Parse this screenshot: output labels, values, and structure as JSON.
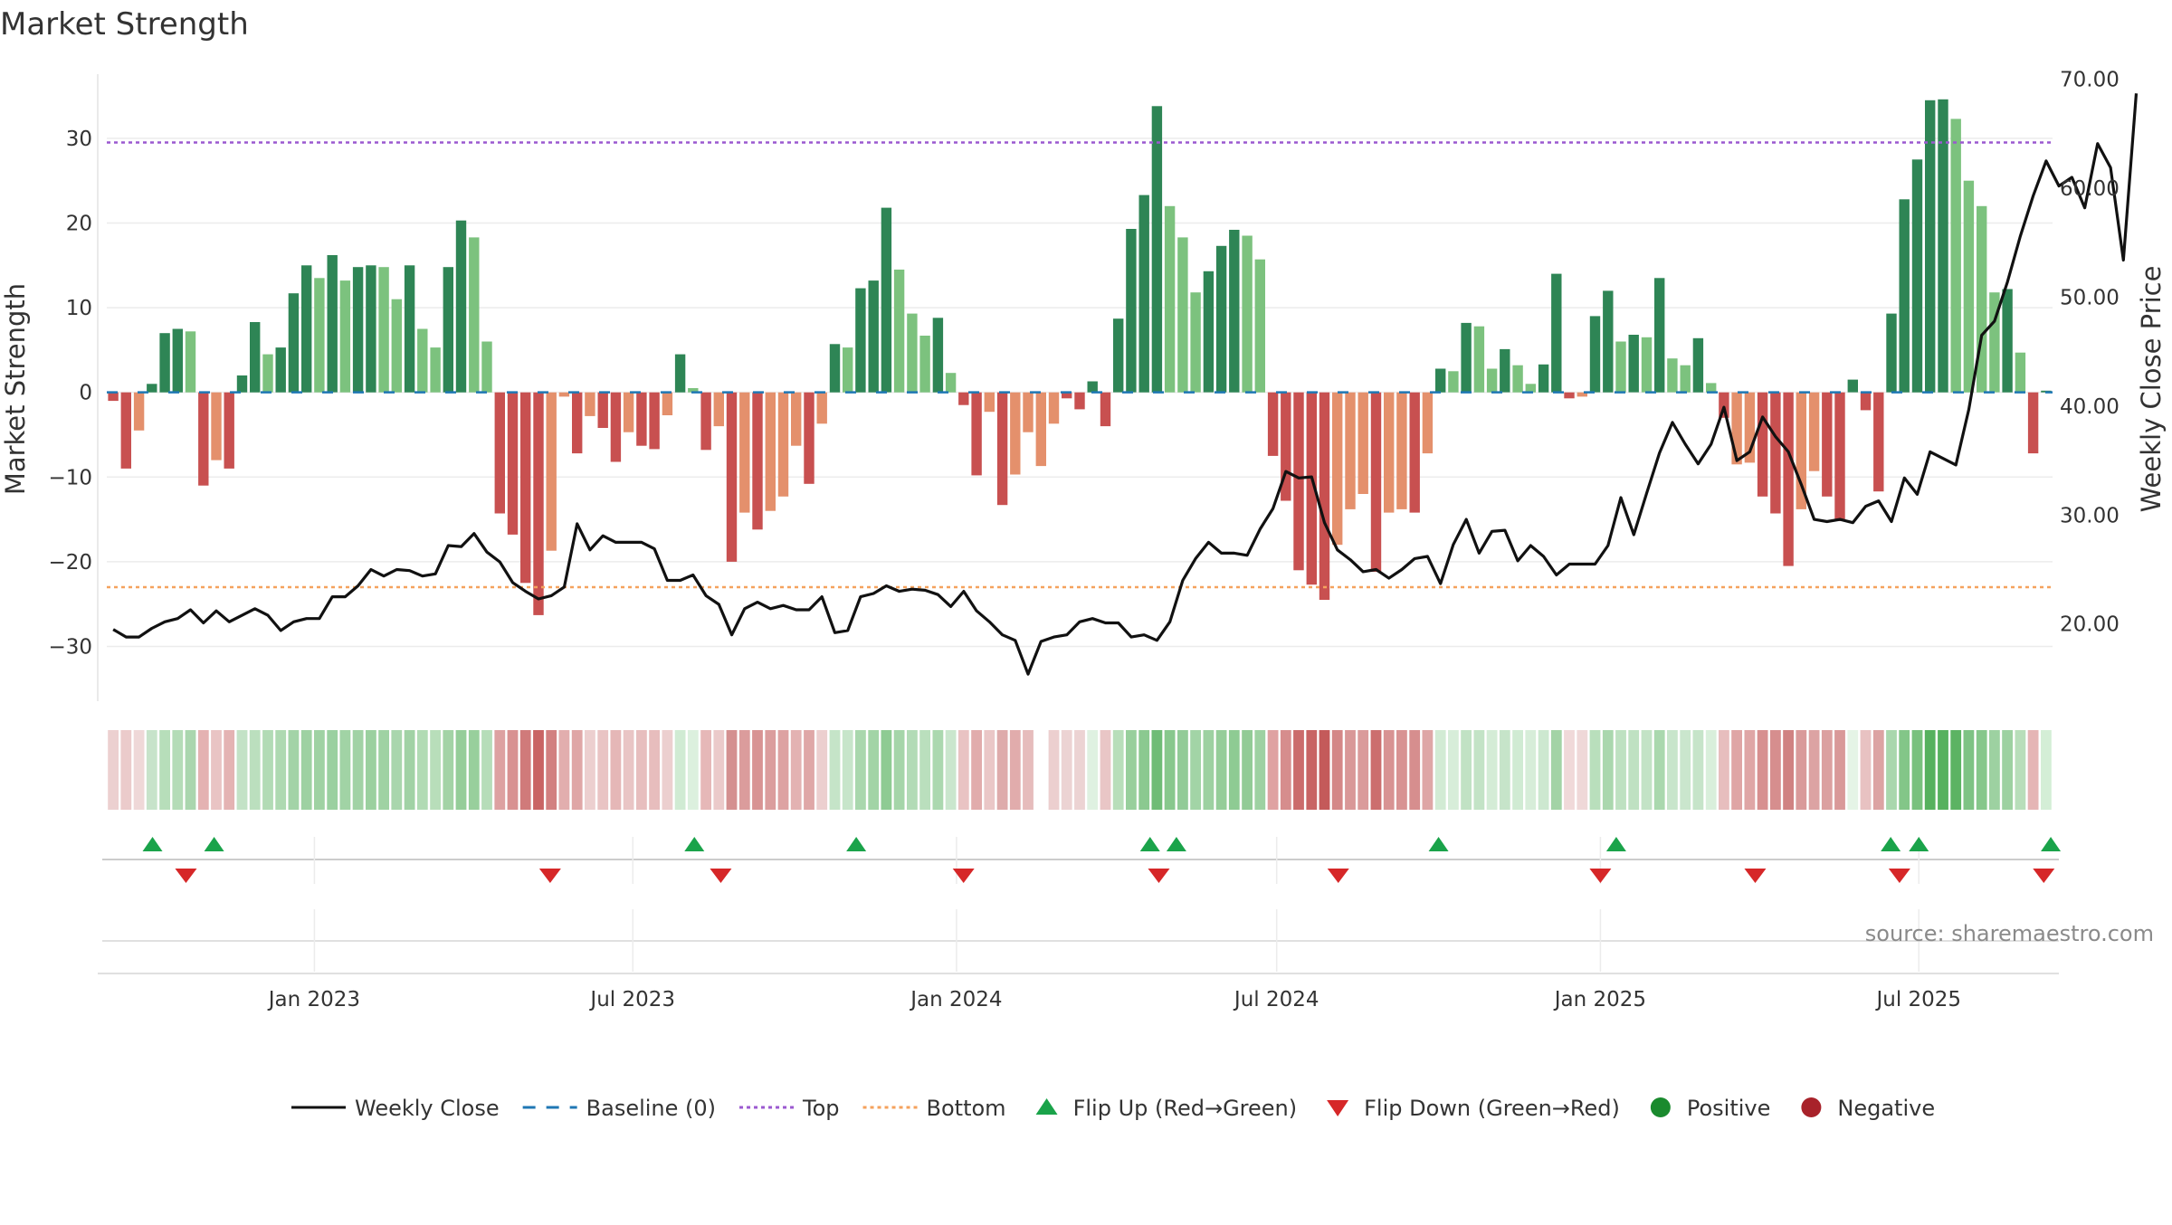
{
  "chart_data": {
    "type": "bar",
    "title": "Market Strength",
    "ylabel": "Market Strength",
    "y2label": "Weekly Close Price",
    "ylim": [
      -37,
      38
    ],
    "y2lim": [
      12.5,
      70.8
    ],
    "yticks": [
      -30,
      -20,
      -10,
      0,
      10,
      20,
      30
    ],
    "y2ticks": [
      20,
      30,
      40,
      50,
      60,
      70
    ],
    "y2tick_labels": [
      "20.00",
      "30.00",
      "40.00",
      "50.00",
      "60.00",
      "70.00"
    ],
    "x_start": "2022-09-05",
    "x_end": "2025-09-15",
    "x_tick_labels": [
      {
        "date": "2023-01-01",
        "label": "Jan 2023"
      },
      {
        "date": "2023-07-01",
        "label": "Jul 2023"
      },
      {
        "date": "2024-01-01",
        "label": "Jan 2024"
      },
      {
        "date": "2024-07-01",
        "label": "Jul 2024"
      },
      {
        "date": "2025-01-01",
        "label": "Jan 2025"
      },
      {
        "date": "2025-07-01",
        "label": "Jul 2025"
      }
    ],
    "top_line": 29.5,
    "bottom_line": -23,
    "grid": true,
    "legend_position": "bottom",
    "series": [
      {
        "name": "Market Strength",
        "values": [
          -1,
          -9,
          -4.5,
          1,
          7,
          7.5,
          7.2,
          -11,
          -8,
          -9,
          2,
          8.3,
          4.5,
          5.3,
          11.7,
          15,
          13.5,
          16.2,
          13.2,
          14.8,
          15,
          14.8,
          11,
          15,
          7.5,
          5.3,
          14.8,
          20.3,
          18.3,
          6,
          -14.3,
          -16.8,
          -22.5,
          -26.3,
          -18.7,
          -0.5,
          -7.2,
          -2.8,
          -4.2,
          -8.2,
          -4.7,
          -6.3,
          -6.7,
          -2.7,
          4.5,
          0.5,
          -6.8,
          -4,
          -20,
          -14.2,
          -16.2,
          -14,
          -12.3,
          -6.3,
          -10.8,
          -3.7,
          5.7,
          5.3,
          12.3,
          13.2,
          21.8,
          14.5,
          9.3,
          6.7,
          8.8,
          2.3,
          -1.5,
          -9.8,
          -2.3,
          -13.3,
          -9.7,
          -4.7,
          -8.7,
          -3.7,
          -0.7,
          -2,
          1.3,
          -4,
          8.7,
          19.3,
          23.3,
          33.8,
          22,
          18.3,
          11.8,
          14.3,
          17.3,
          19.2,
          18.5,
          15.7,
          -7.5,
          -12.8,
          -21,
          -22.7,
          -24.5,
          -18,
          -13.8,
          -12,
          -21.2,
          -14.2,
          -13.8,
          -14.2,
          -7.2,
          2.8,
          2.5,
          8.2,
          7.8,
          2.8,
          5.1,
          3.2,
          1,
          3.3,
          14,
          -0.7,
          -0.5,
          9,
          12,
          6,
          6.8,
          6.5,
          13.5,
          4,
          3.2,
          6.4,
          1.1,
          -3,
          -8.5,
          -8.3,
          -12.3,
          -14.3,
          -20.5,
          -13.8,
          -9.3,
          -12.3,
          -15.2,
          1.5,
          -2.1,
          -11.7,
          9.3,
          22.8,
          27.5,
          34.5,
          34.6,
          32.3,
          25,
          22,
          11.8,
          12.2,
          4.7,
          -7.2,
          0.2
        ],
        "colors": [
          "#c85050",
          "#c85050",
          "#e4906c",
          "#2e8555",
          "#2e8555",
          "#2e8555",
          "#7cc27e",
          "#c85050",
          "#e4906c",
          "#c85050",
          "#2e8555",
          "#2e8555",
          "#7cc27e",
          "#2e8555",
          "#2e8555",
          "#2e8555",
          "#7cc27e",
          "#2e8555",
          "#7cc27e",
          "#2e8555",
          "#2e8555",
          "#7cc27e",
          "#7cc27e",
          "#2e8555",
          "#7cc27e",
          "#7cc27e",
          "#2e8555",
          "#2e8555",
          "#7cc27e",
          "#7cc27e",
          "#c85050",
          "#c85050",
          "#c85050",
          "#c85050",
          "#e4906c",
          "#e4906c",
          "#c85050",
          "#e4906c",
          "#c85050",
          "#c85050",
          "#e4906c",
          "#c85050",
          "#c85050",
          "#e4906c",
          "#2e8555",
          "#7cc27e",
          "#c85050",
          "#e4906c",
          "#c85050",
          "#e4906c",
          "#c85050",
          "#e4906c",
          "#e4906c",
          "#e4906c",
          "#c85050",
          "#e4906c",
          "#2e8555",
          "#7cc27e",
          "#2e8555",
          "#2e8555",
          "#2e8555",
          "#7cc27e",
          "#7cc27e",
          "#7cc27e",
          "#2e8555",
          "#7cc27e",
          "#c85050",
          "#c85050",
          "#e4906c",
          "#c85050",
          "#e4906c",
          "#e4906c",
          "#e4906c",
          "#e4906c",
          "#c85050",
          "#c85050",
          "#2e8555",
          "#c85050",
          "#2e8555",
          "#2e8555",
          "#2e8555",
          "#2e8555",
          "#7cc27e",
          "#7cc27e",
          "#7cc27e",
          "#2e8555",
          "#2e8555",
          "#2e8555",
          "#7cc27e",
          "#7cc27e",
          "#c85050",
          "#c85050",
          "#c85050",
          "#c85050",
          "#c85050",
          "#e4906c",
          "#e4906c",
          "#e4906c",
          "#c85050",
          "#e4906c",
          "#e4906c",
          "#c85050",
          "#e4906c",
          "#2e8555",
          "#7cc27e",
          "#2e8555",
          "#7cc27e",
          "#7cc27e",
          "#2e8555",
          "#7cc27e",
          "#7cc27e",
          "#2e8555",
          "#2e8555",
          "#c85050",
          "#e4906c",
          "#2e8555",
          "#2e8555",
          "#7cc27e",
          "#2e8555",
          "#7cc27e",
          "#2e8555",
          "#7cc27e",
          "#7cc27e",
          "#2e8555",
          "#7cc27e",
          "#c85050",
          "#e4906c",
          "#e4906c",
          "#c85050",
          "#c85050",
          "#c85050",
          "#e4906c",
          "#e4906c",
          "#c85050",
          "#c85050",
          "#2e8555",
          "#c85050",
          "#c85050",
          "#2e8555",
          "#2e8555",
          "#2e8555",
          "#2e8555",
          "#2e8555",
          "#7cc27e",
          "#7cc27e",
          "#7cc27e",
          "#7cc27e",
          "#2e8555",
          "#7cc27e",
          "#c85050",
          "#2e8555"
        ]
      },
      {
        "name": "Weekly Close",
        "values": [
          19.5,
          18.8,
          18.8,
          19.6,
          20.2,
          20.5,
          21.3,
          20.1,
          21.2,
          20.2,
          20.8,
          21.4,
          20.8,
          19.4,
          20.2,
          20.5,
          20.5,
          22.5,
          22.5,
          23.5,
          25,
          24.4,
          25,
          24.9,
          24.4,
          24.6,
          27.2,
          27.1,
          28.3,
          26.6,
          25.7,
          23.8,
          23,
          22.3,
          22.6,
          23.4,
          29.2,
          26.8,
          28.1,
          27.5,
          27.5,
          27.5,
          26.9,
          24,
          24,
          24.5,
          22.6,
          21.8,
          19,
          21.4,
          22,
          21.4,
          21.7,
          21.3,
          21.3,
          22.5,
          19.2,
          19.4,
          22.5,
          22.8,
          23.5,
          23,
          23.2,
          23.1,
          22.7,
          21.6,
          23,
          21.2,
          20.2,
          19,
          18.5,
          15.4,
          18.4,
          18.8,
          19,
          20.2,
          20.5,
          20.1,
          20.1,
          18.8,
          19,
          18.5,
          20.2,
          24,
          26,
          27.5,
          26.5,
          26.5,
          26.3,
          28.7,
          30.6,
          34,
          33.4,
          33.5,
          29.3,
          26.8,
          25.9,
          24.8,
          25,
          24.2,
          25,
          26,
          26.2,
          23.7,
          27.3,
          29.6,
          26.5,
          28.5,
          28.6,
          25.8,
          27.2,
          26.2,
          24.5,
          25.5,
          25.5,
          25.5,
          27.2,
          31.6,
          28.2,
          32,
          35.7,
          38.5,
          36.5,
          34.7,
          36.5,
          39.9,
          35,
          35.8,
          39,
          37.2,
          35.8,
          32.8,
          29.6,
          29.4,
          29.6,
          29.3,
          30.8,
          31.3,
          29.4,
          33.4,
          31.9,
          35.8,
          35.2,
          34.6,
          39.7,
          46.5,
          47.8,
          51.4,
          55.6,
          59.3,
          62.5,
          60.2,
          61,
          58.2,
          64.1,
          61.9,
          53.4,
          68.7
        ]
      }
    ],
    "heat_strip_colors": [
      "#ecd0d0",
      "#ebcbcb",
      "#efd8d8",
      "#c7e3ca",
      "#b7deba",
      "#b4dcb7",
      "#aad6ae",
      "#e4b2b2",
      "#e9c4c4",
      "#e4b3b3",
      "#c3e2c6",
      "#bbdfbe",
      "#b2dbb5",
      "#aed9b1",
      "#a3d3a7",
      "#9ed1a2",
      "#9fd2a3",
      "#9ad0a0",
      "#a1d3a5",
      "#a1d2a5",
      "#9bd09f",
      "#9fd2a3",
      "#a9d6ad",
      "#a1d2a5",
      "#b1dbb4",
      "#b8deba",
      "#a3d3a6",
      "#95cd99",
      "#98cf9c",
      "#b6ddb9",
      "#dda1a1",
      "#d89191",
      "#d07a7a",
      "#c96464",
      "#d28080",
      "#e2aeae",
      "#dfa6a6",
      "#eccfcf",
      "#e9c4c4",
      "#e5b7b7",
      "#e9c5c5",
      "#e7bebe",
      "#e7bdbd",
      "#eccfcf",
      "#d0ebd3",
      "#dcf0de",
      "#e6b8b8",
      "#ebcaca",
      "#d49090",
      "#db9c9c",
      "#d89393",
      "#db9d9d",
      "#dda2a2",
      "#e3b2b2",
      "#dfa7a7",
      "#eccfcf",
      "#c5e4c8",
      "#c7e5ca",
      "#a9d7ad",
      "#a2d4a6",
      "#8ecb93",
      "#a5d5a9",
      "#b2dbb6",
      "#badfbd",
      "#abd8af",
      "#cae6cd",
      "#e9c3c3",
      "#e1acac",
      "#eac7c7",
      "#deabab",
      "#e1acac",
      "#e6bcbc",
      "#ffffff",
      "#eccfcf",
      "#ecd3d3",
      "#ecd3d3",
      "#dff1e1",
      "#e9c6c6",
      "#b8deba",
      "#98cf9c",
      "#8bc990",
      "#6fbc76",
      "#88c88d",
      "#92cb97",
      "#a2d4a6",
      "#9dd1a1",
      "#95cd99",
      "#8ecb93",
      "#92cb96",
      "#9ed1a2",
      "#dfa2a2",
      "#d68d8d",
      "#cb6c6c",
      "#c86464",
      "#c45a5a",
      "#d48787",
      "#d99898",
      "#da9b9b",
      "#cc6e6e",
      "#d89393",
      "#d89393",
      "#d68e8e",
      "#dea6a6",
      "#d2ebd4",
      "#d7edd9",
      "#c1e2c4",
      "#c3e3c6",
      "#d4ecd6",
      "#c6e4c9",
      "#d0ebd3",
      "#d7edd9",
      "#cde8d0",
      "#a3d3a6",
      "#f0d9d9",
      "#efd8d8",
      "#b9dfbc",
      "#aad7ae",
      "#bee1c1",
      "#bfe1c2",
      "#c3e3c6",
      "#aad8ae",
      "#c8e5cb",
      "#cae6cd",
      "#c6e4c9",
      "#d9efdb",
      "#e7bebe",
      "#dfa5a5",
      "#dfa6a6",
      "#d79090",
      "#d68e8e",
      "#d08282",
      "#d99a9a",
      "#dca3a3",
      "#dba0a0",
      "#d99999",
      "#e5f4e6",
      "#e8c2c2",
      "#dca3a3",
      "#a9d7ad",
      "#83c688",
      "#79c17e",
      "#56b15e",
      "#56b15e",
      "#5cb363",
      "#7ec384",
      "#86c78b",
      "#9dd1a1",
      "#9dd1a1",
      "#b8deba",
      "#e5b5b5",
      "#d4eed6"
    ],
    "flip_up_index": [
      4,
      7,
      34,
      42,
      65,
      67,
      83,
      91,
      101,
      103,
      104
    ],
    "flip_down_index": [
      3,
      17,
      28,
      42,
      50,
      60,
      75,
      83,
      95,
      104
    ],
    "flip_up_x": [
      "2022-10-01",
      "2022-11-05",
      "2023-08-05",
      "2023-11-05",
      "2024-04-20",
      "2024-05-05",
      "2024-10-01",
      "2025-01-10",
      "2025-06-15",
      "2025-07-01",
      "2025-09-14"
    ],
    "flip_down_x": [
      "2022-10-20",
      "2023-05-15",
      "2023-08-20",
      "2024-01-05",
      "2024-04-25",
      "2024-08-05",
      "2025-01-01",
      "2025-03-30",
      "2025-06-20",
      "2025-09-10"
    ],
    "legend": [
      {
        "label": "Weekly Close",
        "kind": "line-solid",
        "color": "#111111"
      },
      {
        "label": "Baseline (0)",
        "kind": "line-dash",
        "color": "#1f77b4"
      },
      {
        "label": "Top",
        "kind": "line-dot",
        "color": "#9b59d0"
      },
      {
        "label": "Bottom",
        "kind": "line-dot",
        "color": "#f5a25d"
      },
      {
        "label": "Flip Up (Red→Green)",
        "kind": "tri-up",
        "color": "#1aa34a"
      },
      {
        "label": "Flip Down (Green→Red)",
        "kind": "tri-down",
        "color": "#d62728"
      },
      {
        "label": "Positive",
        "kind": "dot",
        "color": "#1a8a2e"
      },
      {
        "label": "Negative",
        "kind": "dot",
        "color": "#a8222a"
      }
    ],
    "source": "source: sharemaestro.com"
  }
}
